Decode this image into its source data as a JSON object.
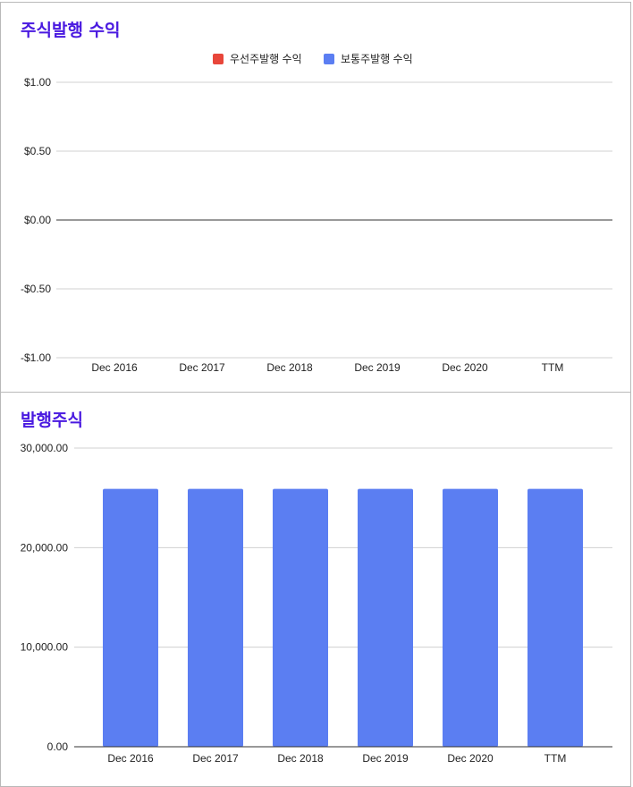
{
  "chart_data": [
    {
      "type": "bar",
      "title": "주식발행 수익",
      "categories": [
        "Dec 2016",
        "Dec 2017",
        "Dec 2018",
        "Dec 2019",
        "Dec 2020",
        "TTM"
      ],
      "series": [
        {
          "name": "우선주발행 수익",
          "values": [
            0,
            0,
            0,
            0,
            0,
            0
          ],
          "color": "#e8463a"
        },
        {
          "name": "보통주발행 수익",
          "values": [
            0,
            0,
            0,
            0,
            0,
            0
          ],
          "color": "#5b7ef2"
        }
      ],
      "y_ticks": [
        "$1.00",
        "$0.50",
        "$0.00",
        "-$0.50",
        "-$1.00"
      ],
      "ylim": [
        -1,
        1
      ],
      "grid": true,
      "legend": "top"
    },
    {
      "type": "bar",
      "title": "발행주식",
      "categories": [
        "Dec 2016",
        "Dec 2017",
        "Dec 2018",
        "Dec 2019",
        "Dec 2020",
        "TTM"
      ],
      "series": [
        {
          "values": [
            25900,
            25900,
            25900,
            25900,
            25900,
            25900
          ],
          "color": "#5b7ef2"
        }
      ],
      "y_ticks": [
        "30,000.00",
        "20,000.00",
        "10,000.00",
        "0.00"
      ],
      "ylim": [
        0,
        30000
      ],
      "grid": true
    }
  ]
}
